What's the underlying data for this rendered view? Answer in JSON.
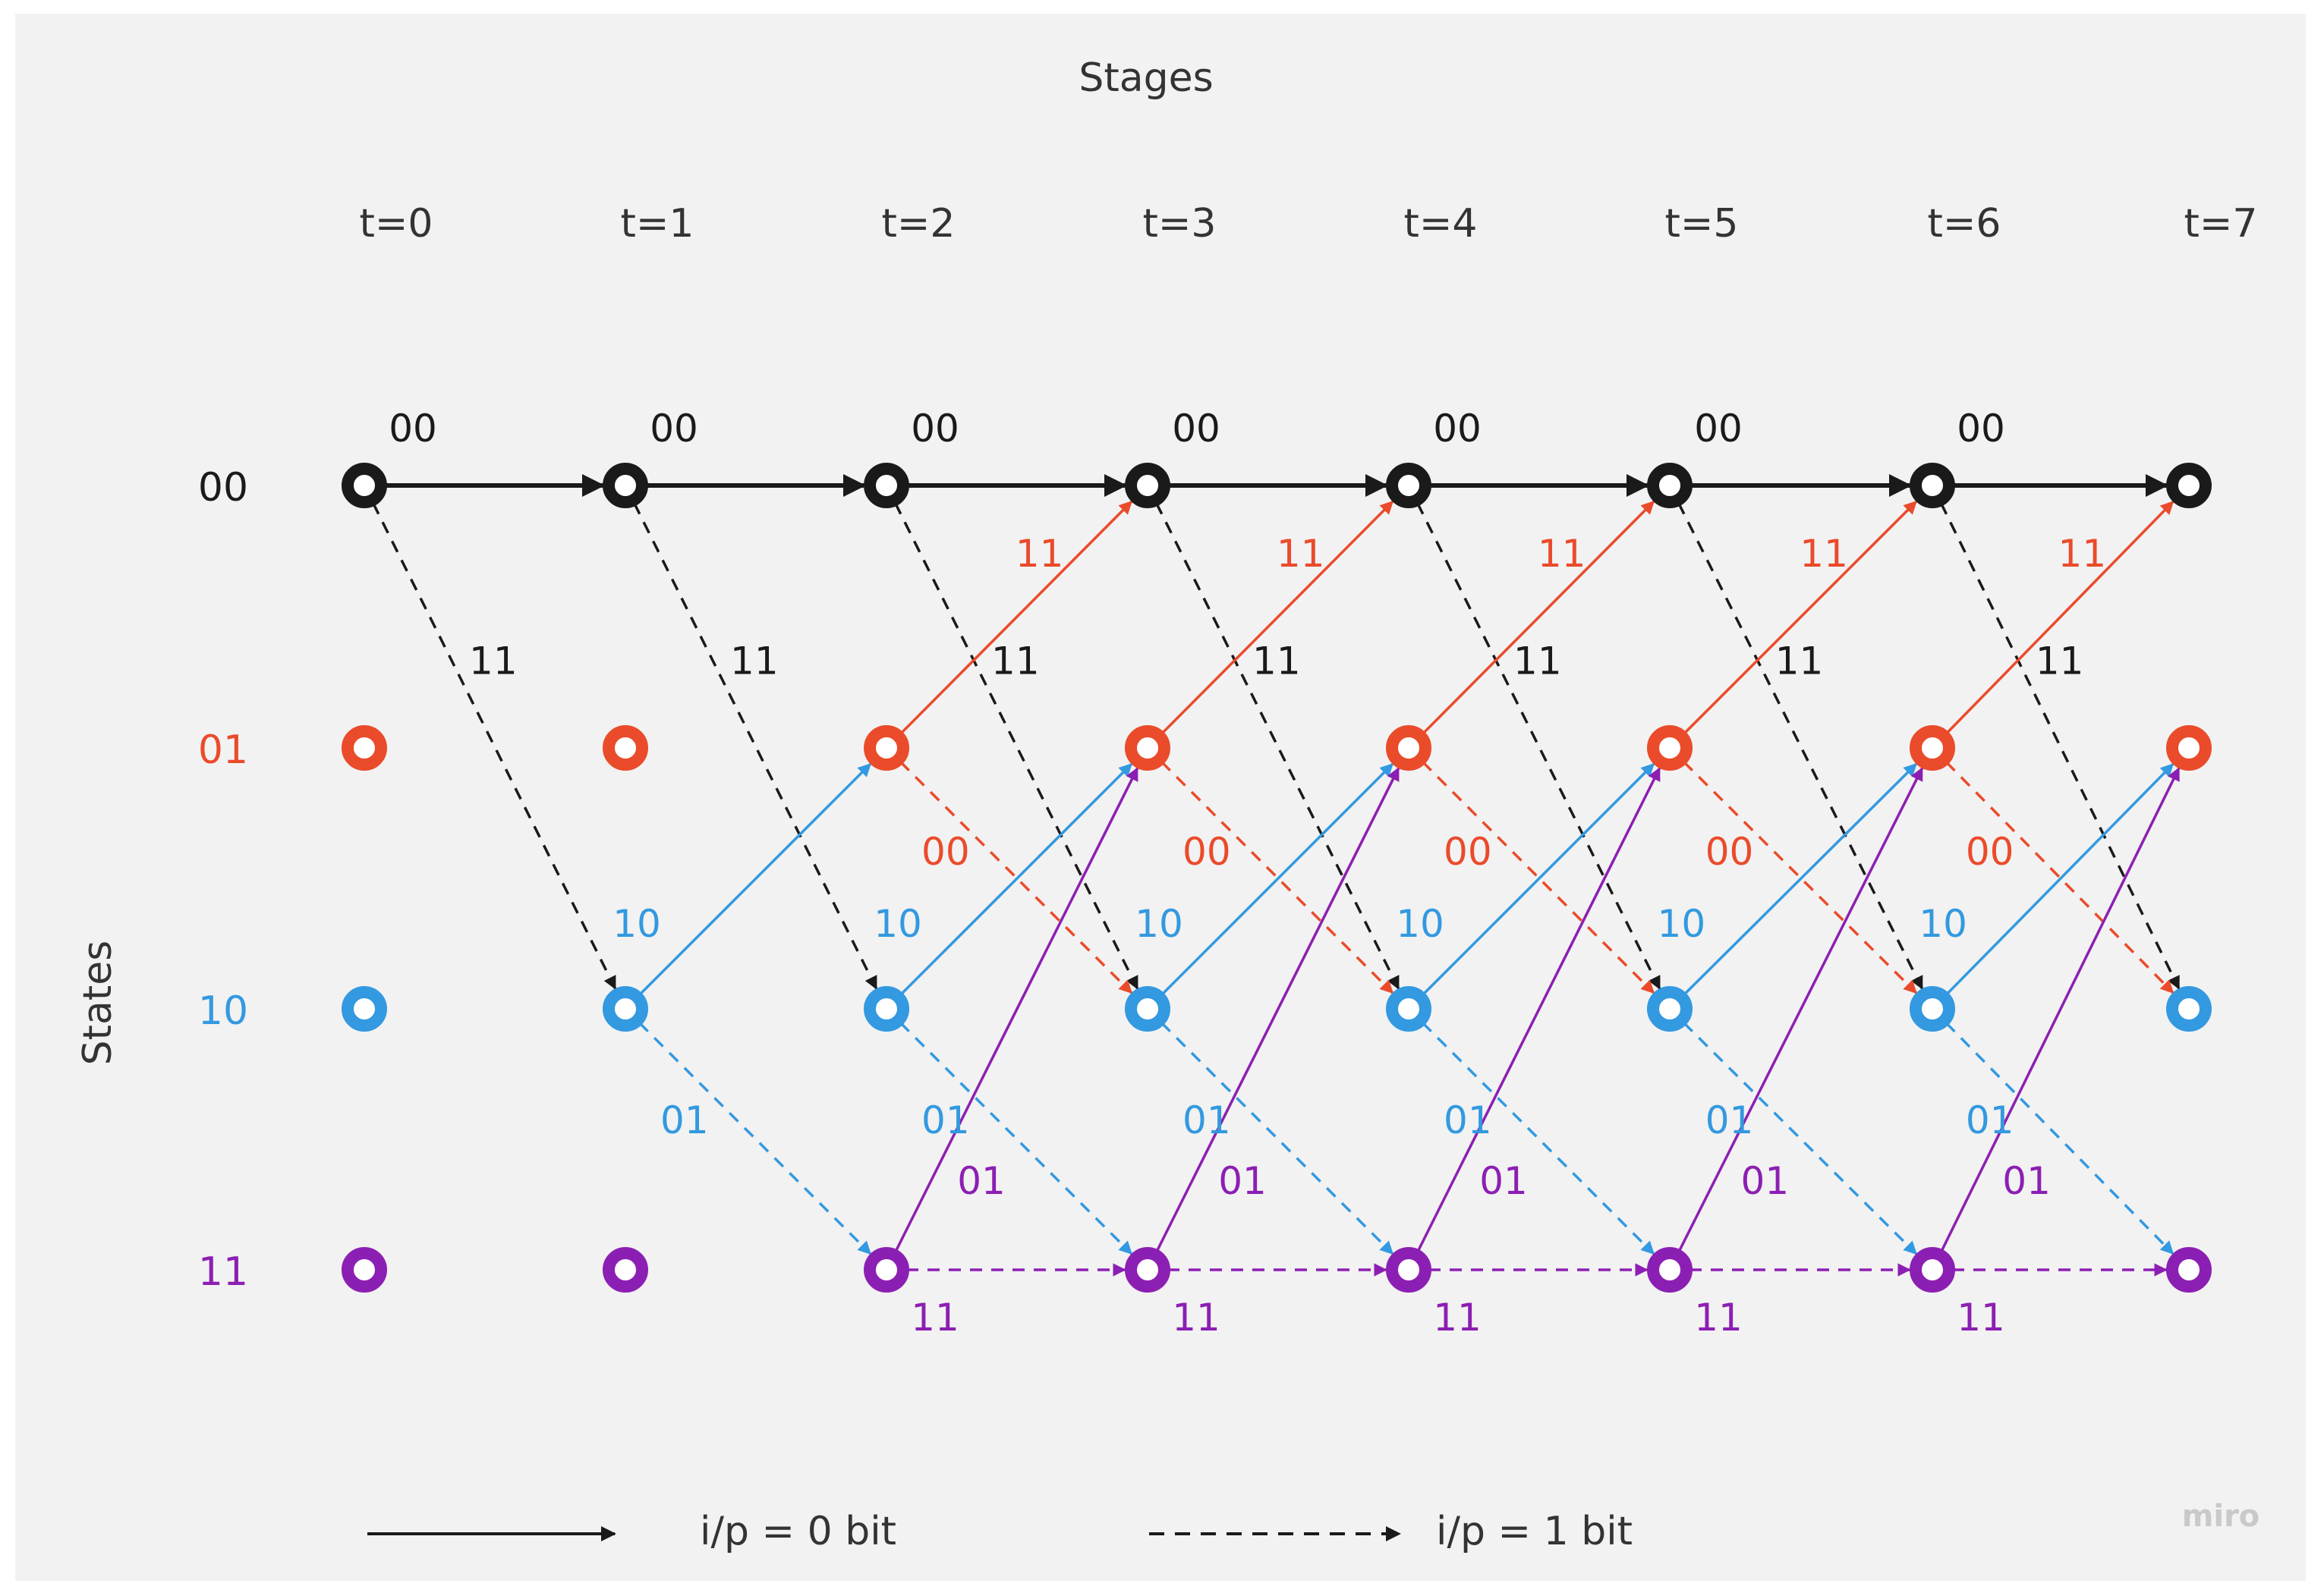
{
  "title": "Stages",
  "y_axis_label": "States",
  "stages": [
    "t=0",
    "t=1",
    "t=2",
    "t=3",
    "t=4",
    "t=5",
    "t=6",
    "t=7"
  ],
  "states": [
    {
      "label": "00",
      "color": "#1a1a1a"
    },
    {
      "label": "01",
      "color": "#ea4b2b"
    },
    {
      "label": "10",
      "color": "#3399e0"
    },
    {
      "label": "11",
      "color": "#8c1fb3"
    }
  ],
  "nodes_hollow": true,
  "transitions": [
    {
      "from": "00",
      "input": "0",
      "to": "00",
      "output": "00",
      "style": "solid",
      "color": "black"
    },
    {
      "from": "00",
      "input": "1",
      "to": "10",
      "output": "11",
      "style": "dashed",
      "color": "black"
    },
    {
      "from": "01",
      "input": "0",
      "to": "00",
      "output": "11",
      "style": "solid",
      "color": "red"
    },
    {
      "from": "01",
      "input": "1",
      "to": "10",
      "output": "00",
      "style": "dashed",
      "color": "red"
    },
    {
      "from": "10",
      "input": "0",
      "to": "01",
      "output": "10",
      "style": "solid",
      "color": "blue"
    },
    {
      "from": "10",
      "input": "1",
      "to": "11",
      "output": "01",
      "style": "dashed",
      "color": "blue"
    },
    {
      "from": "11",
      "input": "0",
      "to": "01",
      "output": "01",
      "style": "solid",
      "color": "purple"
    },
    {
      "from": "11",
      "input": "1",
      "to": "11",
      "output": "11",
      "style": "dashed",
      "color": "purple"
    }
  ],
  "legend": [
    {
      "style": "solid",
      "label": "i/p = 0 bit"
    },
    {
      "style": "dashed",
      "label": "i/p = 1 bit"
    }
  ],
  "watermark": "miro"
}
